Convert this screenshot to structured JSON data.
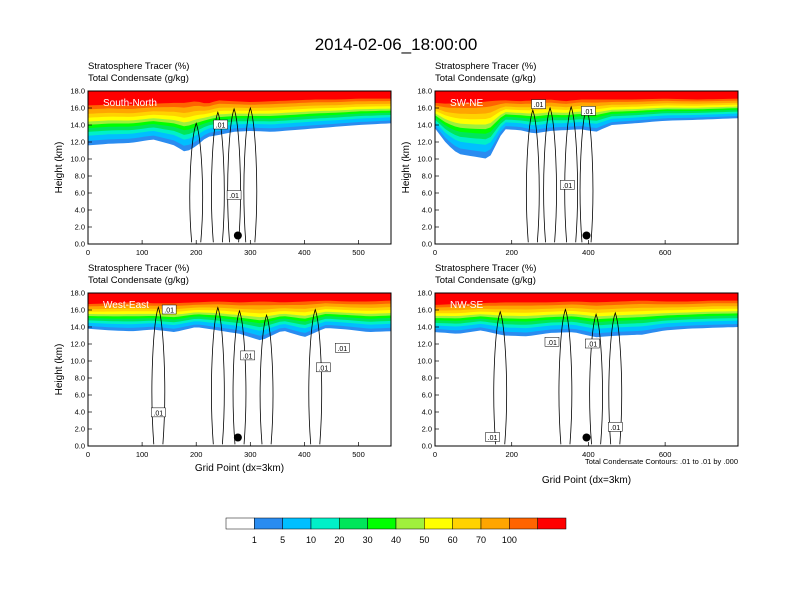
{
  "title": "2014-02-06_18:00:00",
  "colors": {
    "levels": [
      "#ffffff",
      "#2a8cf0",
      "#00bfff",
      "#00f0c8",
      "#00e65a",
      "#00ff00",
      "#a0f03c",
      "#ffff00",
      "#ffd200",
      "#ffa500",
      "#ff6400",
      "#ff0000"
    ],
    "contour": "#000000",
    "marker": "#000000"
  },
  "colorbar": {
    "labels": [
      "1",
      "5",
      "10",
      "20",
      "30",
      "40",
      "50",
      "60",
      "70",
      "100"
    ],
    "colors": [
      "#ffffff",
      "#2a8cf0",
      "#00bfff",
      "#00f0c8",
      "#00e65a",
      "#00ff00",
      "#a0f03c",
      "#ffff00",
      "#ffd200",
      "#ffa500",
      "#ff6400",
      "#ff0000"
    ]
  },
  "contour_note": "Total Condensate Contours: .01 to .01 by .000",
  "chart_data": [
    {
      "type": "heatmap",
      "subtitle1": "Stratosphere Tracer   (%)",
      "subtitle2": "Total Condensate   (g/kg)",
      "label": "South-North",
      "ylabel": "Height (km)",
      "xlabel": "",
      "xlim": [
        0,
        560
      ],
      "ylim": [
        0,
        18
      ],
      "xticks": [
        "0",
        "100",
        "200",
        "300",
        "400",
        "500"
      ],
      "xtick_values": [
        0,
        100,
        200,
        300,
        400,
        500
      ],
      "yticks": [
        "0.0",
        "2.0",
        "4.0",
        "6.0",
        "8.0",
        "10.0",
        "12.0",
        "14.0",
        "16.0",
        "18.0"
      ],
      "profile": {
        "x": [
          0,
          40,
          80,
          120,
          160,
          180,
          200,
          220,
          240,
          270,
          300,
          340,
          380,
          420,
          460,
          500,
          560
        ],
        "blue_bottom": [
          11.6,
          11.8,
          11.9,
          12.3,
          11.6,
          10.8,
          11.5,
          12.6,
          12.8,
          13.2,
          13.3,
          13.2,
          13.4,
          13.6,
          13.8,
          14.0,
          14.2
        ],
        "red_bottom": [
          16.3,
          16.4,
          16.3,
          16.5,
          16.6,
          16.6,
          16.8,
          16.5,
          16.9,
          16.8,
          16.7,
          16.8,
          16.9,
          17.0,
          17.0,
          17.1,
          17.1
        ]
      },
      "contour_labels": [
        {
          "text": ".01",
          "x": 245,
          "y": 14.0
        },
        {
          "text": ".01",
          "x": 270,
          "y": 5.7
        }
      ],
      "marker": {
        "x": 277,
        "y": 1.0
      }
    },
    {
      "type": "heatmap",
      "subtitle1": "Stratosphere Tracer   (%)",
      "subtitle2": "Total Condensate   (g/kg)",
      "label": "SW-NE",
      "ylabel": "Height (km)",
      "xlabel": "",
      "xlim": [
        0,
        790
      ],
      "ylim": [
        0,
        18
      ],
      "xticks": [
        "0",
        "200",
        "400",
        "600"
      ],
      "xtick_values": [
        0,
        200,
        400,
        600
      ],
      "yticks": [
        "0.0",
        "2.0",
        "4.0",
        "6.0",
        "8.0",
        "10.0",
        "12.0",
        "14.0",
        "16.0",
        "18.0"
      ],
      "profile": {
        "x": [
          0,
          30,
          60,
          100,
          140,
          180,
          220,
          260,
          300,
          340,
          380,
          420,
          460,
          520,
          600,
          680,
          790
        ],
        "blue_bottom": [
          13.6,
          11.8,
          10.6,
          10.3,
          10.0,
          13.5,
          13.4,
          13.0,
          13.3,
          13.4,
          13.5,
          13.2,
          14.0,
          14.2,
          14.5,
          14.6,
          14.8
        ],
        "red_bottom": [
          16.6,
          16.5,
          16.6,
          16.6,
          16.8,
          16.9,
          16.8,
          16.9,
          17.0,
          16.8,
          17.0,
          17.0,
          17.0,
          17.0,
          17.1,
          17.0,
          17.1
        ]
      },
      "contour_labels": [
        {
          "text": ".01",
          "x": 270,
          "y": 16.4
        },
        {
          "text": ".01",
          "x": 400,
          "y": 15.6
        },
        {
          "text": ".01",
          "x": 345,
          "y": 6.9
        }
      ],
      "marker": {
        "x": 395,
        "y": 1.0
      }
    },
    {
      "type": "heatmap",
      "subtitle1": "Stratosphere Tracer   (%)",
      "subtitle2": "Total Condensate   (g/kg)",
      "label": "West-East",
      "ylabel": "Height (km)",
      "xlabel": "Grid Point (dx=3km)",
      "xlim": [
        0,
        560
      ],
      "ylim": [
        0,
        18
      ],
      "xticks": [
        "0",
        "100",
        "200",
        "300",
        "400",
        "500"
      ],
      "xtick_values": [
        0,
        100,
        200,
        300,
        400,
        500
      ],
      "yticks": [
        "0.0",
        "2.0",
        "4.0",
        "6.0",
        "8.0",
        "10.0",
        "12.0",
        "14.0",
        "16.0",
        "18.0"
      ],
      "profile": {
        "x": [
          0,
          40,
          80,
          120,
          160,
          200,
          240,
          280,
          320,
          360,
          400,
          440,
          480,
          520,
          560
        ],
        "blue_bottom": [
          13.8,
          13.6,
          13.5,
          13.7,
          13.4,
          14.0,
          13.6,
          13.2,
          12.4,
          13.6,
          12.8,
          13.9,
          13.7,
          13.4,
          13.5
        ],
        "red_bottom": [
          16.7,
          16.8,
          16.9,
          16.8,
          16.8,
          16.9,
          17.0,
          16.9,
          17.0,
          16.9,
          17.0,
          17.1,
          17.0,
          17.0,
          17.1
        ]
      },
      "contour_labels": [
        {
          "text": ".01",
          "x": 150,
          "y": 16.0
        },
        {
          "text": ".01",
          "x": 295,
          "y": 10.6
        },
        {
          "text": ".01",
          "x": 470,
          "y": 11.5
        },
        {
          "text": ".01",
          "x": 435,
          "y": 9.2
        },
        {
          "text": ".01",
          "x": 130,
          "y": 3.9
        }
      ],
      "marker": {
        "x": 277,
        "y": 1.0
      }
    },
    {
      "type": "heatmap",
      "subtitle1": "Stratosphere Tracer   (%)",
      "subtitle2": "Total Condensate   (g/kg)",
      "label": "NW-SE",
      "ylabel": "",
      "xlabel": "Grid Point (dx=3km)",
      "xlim": [
        0,
        790
      ],
      "ylim": [
        0,
        18
      ],
      "xticks": [
        "0",
        "200",
        "400",
        "600"
      ],
      "xtick_values": [
        0,
        200,
        400,
        600
      ],
      "yticks": [
        "0.0",
        "2.0",
        "4.0",
        "6.0",
        "8.0",
        "10.0",
        "12.0",
        "14.0",
        "16.0",
        "18.0"
      ],
      "profile": {
        "x": [
          0,
          60,
          120,
          180,
          240,
          300,
          360,
          420,
          480,
          540,
          600,
          660,
          720,
          790
        ],
        "blue_bottom": [
          13.4,
          13.2,
          13.6,
          13.0,
          12.9,
          13.3,
          13.4,
          12.8,
          13.0,
          13.1,
          13.6,
          13.8,
          13.9,
          14.0
        ],
        "red_bottom": [
          16.6,
          16.7,
          16.8,
          16.9,
          16.9,
          16.9,
          17.0,
          16.9,
          17.0,
          17.1,
          17.0,
          17.0,
          17.1,
          17.1
        ]
      },
      "contour_labels": [
        {
          "text": ".01",
          "x": 305,
          "y": 12.2
        },
        {
          "text": ".01",
          "x": 410,
          "y": 12.0
        },
        {
          "text": ".01",
          "x": 470,
          "y": 2.2
        },
        {
          "text": ".01",
          "x": 150,
          "y": 1.0
        }
      ],
      "marker": {
        "x": 395,
        "y": 1.0
      }
    }
  ]
}
